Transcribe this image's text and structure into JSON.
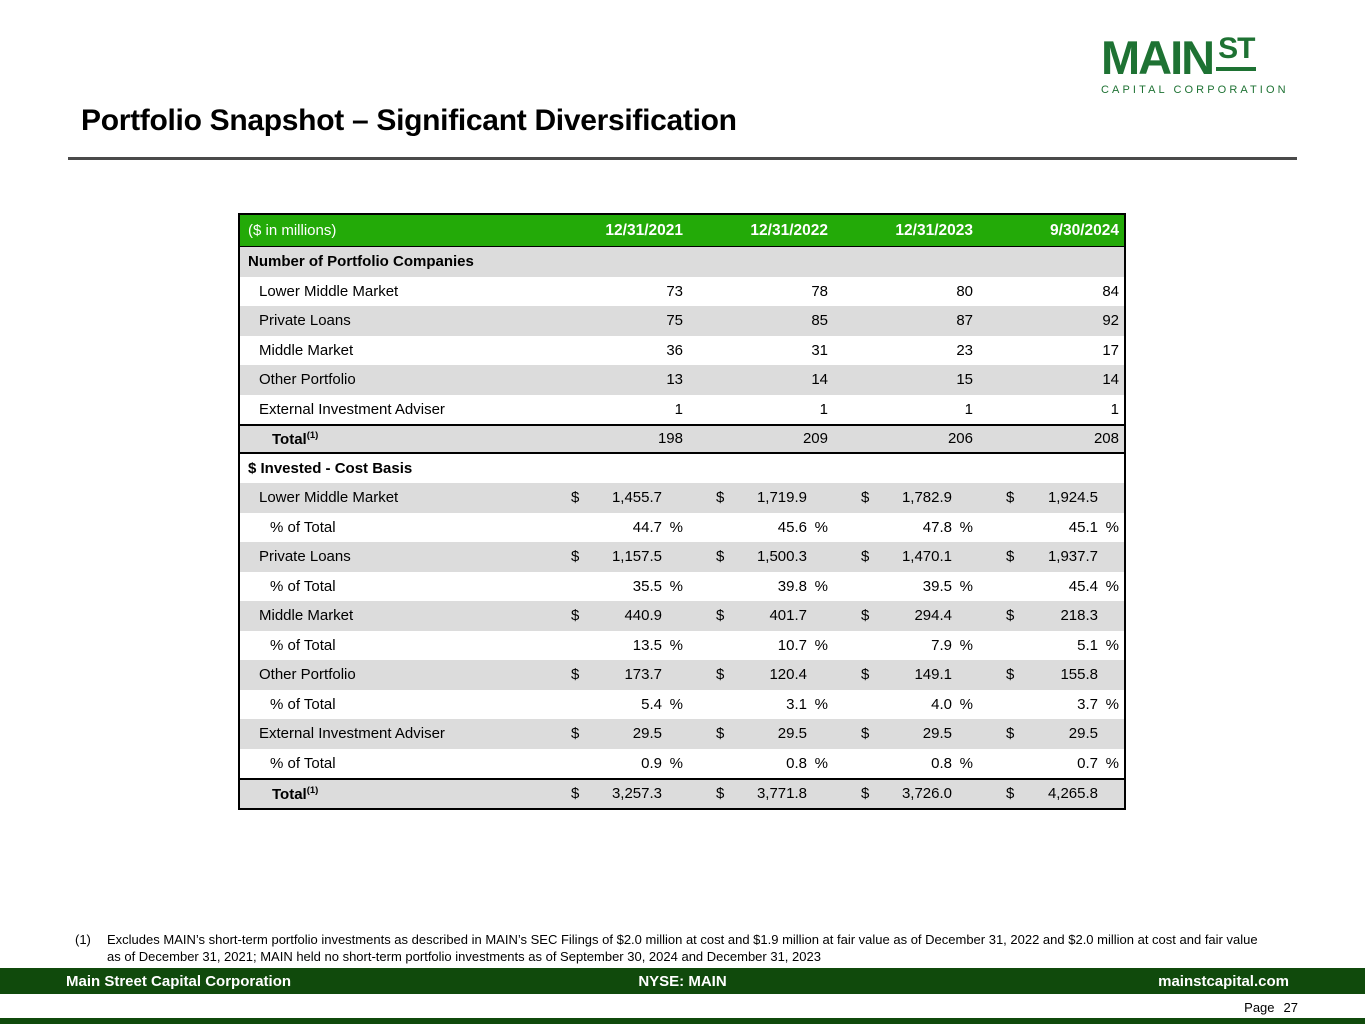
{
  "title": "Portfolio Snapshot – Significant Diversification",
  "logo": {
    "main": "MAIN",
    "st": "ST",
    "sub": "CAPITAL CORPORATION"
  },
  "colors": {
    "table_header_green": "#23AA08",
    "stripe_gray": "#DCDCDC",
    "footer_dark_green": "#104A0C",
    "logo_green": "#1E7233"
  },
  "table": {
    "unit_label": "($ in millions)",
    "currency_symbol": "$",
    "percent_symbol": "%",
    "columns": [
      "12/31/2021",
      "12/31/2022",
      "12/31/2023",
      "9/30/2024"
    ],
    "rows": [
      {
        "kind": "section",
        "label": "Number of Portfolio Companies"
      },
      {
        "kind": "data",
        "format": "int",
        "label": "Lower Middle Market",
        "values": [
          "73",
          "78",
          "80",
          "84"
        ]
      },
      {
        "kind": "data",
        "format": "int",
        "label": "Private Loans",
        "values": [
          "75",
          "85",
          "87",
          "92"
        ]
      },
      {
        "kind": "data",
        "format": "int",
        "label": "Middle Market",
        "values": [
          "36",
          "31",
          "23",
          "17"
        ]
      },
      {
        "kind": "data",
        "format": "int",
        "label": "Other Portfolio",
        "values": [
          "13",
          "14",
          "15",
          "14"
        ]
      },
      {
        "kind": "data",
        "format": "int",
        "label": "External Investment Adviser",
        "values": [
          "1",
          "1",
          "1",
          "1"
        ]
      },
      {
        "kind": "total",
        "format": "int",
        "label": "Total",
        "sup": "(1)",
        "values": [
          "198",
          "209",
          "206",
          "208"
        ]
      },
      {
        "kind": "section",
        "label": "$ Invested - Cost Basis"
      },
      {
        "kind": "data",
        "format": "dollar",
        "label": "Lower Middle Market",
        "values": [
          "1,455.7",
          "1,719.9",
          "1,782.9",
          "1,924.5"
        ]
      },
      {
        "kind": "pct",
        "format": "percent",
        "label": "% of Total",
        "values": [
          "44.7",
          "45.6",
          "47.8",
          "45.1"
        ]
      },
      {
        "kind": "data",
        "format": "dollar",
        "label": "Private Loans",
        "values": [
          "1,157.5",
          "1,500.3",
          "1,470.1",
          "1,937.7"
        ]
      },
      {
        "kind": "pct",
        "format": "percent",
        "label": "% of Total",
        "values": [
          "35.5",
          "39.8",
          "39.5",
          "45.4"
        ]
      },
      {
        "kind": "data",
        "format": "dollar",
        "label": "Middle Market",
        "values": [
          "440.9",
          "401.7",
          "294.4",
          "218.3"
        ]
      },
      {
        "kind": "pct",
        "format": "percent",
        "label": "% of Total",
        "values": [
          "13.5",
          "10.7",
          "7.9",
          "5.1"
        ]
      },
      {
        "kind": "data",
        "format": "dollar",
        "label": "Other Portfolio",
        "values": [
          "173.7",
          "120.4",
          "149.1",
          "155.8"
        ]
      },
      {
        "kind": "pct",
        "format": "percent",
        "label": "% of Total",
        "values": [
          "5.4",
          "3.1",
          "4.0",
          "3.7"
        ]
      },
      {
        "kind": "data",
        "format": "dollar",
        "label": "External Investment Adviser",
        "values": [
          "29.5",
          "29.5",
          "29.5",
          "29.5"
        ]
      },
      {
        "kind": "pct",
        "format": "percent",
        "label": "% of Total",
        "values": [
          "0.9",
          "0.8",
          "0.8",
          "0.7"
        ]
      },
      {
        "kind": "total",
        "format": "dollar",
        "label": "Total",
        "sup": "(1)",
        "values": [
          "3,257.3",
          "3,771.8",
          "3,726.0",
          "4,265.8"
        ]
      }
    ]
  },
  "footnote": {
    "marker": "(1)",
    "text": "Excludes MAIN’s short-term portfolio investments as described in MAIN’s SEC Filings of $2.0 million at cost and $1.9 million at fair value as of December 31, 2022 and $2.0 million at cost and fair value as of December 31, 2021; MAIN held no short-term portfolio investments as of September 30, 2024 and December 31, 2023"
  },
  "footer": {
    "left": "Main Street Capital Corporation",
    "center": "NYSE: MAIN",
    "right": "mainstcapital.com"
  },
  "page": {
    "label": "Page",
    "number": "27"
  }
}
